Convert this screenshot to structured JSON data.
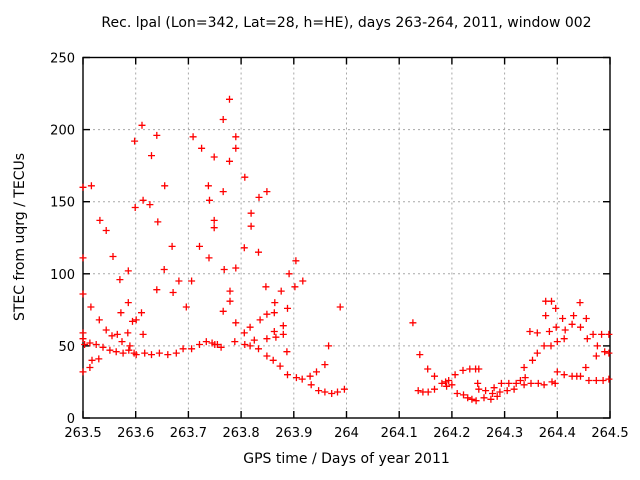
{
  "chart_data": {
    "type": "scatter",
    "title": "Rec. lpal (Lon=342, Lat=28, h=HE), days 263-264, 2011, window 002",
    "xlabel": "GPS time / Days of year 2011",
    "ylabel": "STEC from uqrg / TECUs",
    "xlim": [
      263.5,
      264.5
    ],
    "ylim": [
      0,
      250
    ],
    "x_ticks": [
      263.5,
      263.6,
      263.7,
      263.8,
      263.9,
      264.0,
      264.1,
      264.2,
      264.3,
      264.4,
      264.5
    ],
    "x_tick_labels": [
      "263.5",
      "263.6",
      "263.7",
      "263.8",
      "263.9",
      "264",
      "264.1",
      "264.2",
      "264.3",
      "264.4",
      "264.5"
    ],
    "y_ticks": [
      0,
      50,
      100,
      150,
      200,
      250
    ],
    "y_tick_labels": [
      "0",
      "50",
      "100",
      "150",
      "200",
      "250"
    ],
    "grid": true,
    "legend": "none",
    "marker": "plus",
    "marker_color": "#ff0000",
    "series": [
      {
        "name": "STEC uqrg",
        "points": [
          [
            263.5,
            160
          ],
          [
            263.516,
            161
          ],
          [
            263.532,
            137
          ],
          [
            263.544,
            130
          ],
          [
            263.5,
            111
          ],
          [
            263.557,
            112
          ],
          [
            263.57,
            96
          ],
          [
            263.586,
            102
          ],
          [
            263.598,
            192
          ],
          [
            263.612,
            203
          ],
          [
            263.64,
            196
          ],
          [
            263.63,
            182
          ],
          [
            263.599,
            146
          ],
          [
            263.614,
            151
          ],
          [
            263.627,
            148
          ],
          [
            263.642,
            136
          ],
          [
            263.655,
            161
          ],
          [
            263.5,
            86
          ],
          [
            263.515,
            77
          ],
          [
            263.586,
            80
          ],
          [
            263.572,
            73
          ],
          [
            263.531,
            68
          ],
          [
            263.544,
            61
          ],
          [
            263.5,
            59
          ],
          [
            263.5,
            55
          ],
          [
            263.513,
            52
          ],
          [
            263.503,
            51
          ],
          [
            263.525,
            51
          ],
          [
            263.538,
            49
          ],
          [
            263.551,
            47
          ],
          [
            263.563,
            46
          ],
          [
            263.576,
            45
          ],
          [
            263.587,
            47
          ],
          [
            263.597,
            45
          ],
          [
            263.517,
            40
          ],
          [
            263.53,
            41
          ],
          [
            263.513,
            35
          ],
          [
            263.5,
            32
          ],
          [
            263.555,
            57
          ],
          [
            263.565,
            58
          ],
          [
            263.574,
            53
          ],
          [
            263.585,
            59
          ],
          [
            263.594,
            67
          ],
          [
            263.601,
            68
          ],
          [
            263.611,
            73
          ],
          [
            263.614,
            58
          ],
          [
            263.589,
            50
          ],
          [
            263.654,
            103
          ],
          [
            263.669,
            119
          ],
          [
            263.64,
            89
          ],
          [
            263.671,
            87
          ],
          [
            263.682,
            95
          ],
          [
            263.696,
            77
          ],
          [
            263.706,
            95
          ],
          [
            263.721,
            119
          ],
          [
            263.739,
            111
          ],
          [
            263.709,
            195
          ],
          [
            263.725,
            187
          ],
          [
            263.738,
            161
          ],
          [
            263.74,
            151
          ],
          [
            263.749,
            181
          ],
          [
            263.749,
            137
          ],
          [
            263.749,
            132
          ],
          [
            263.601,
            44
          ],
          [
            263.617,
            45
          ],
          [
            263.63,
            44
          ],
          [
            263.645,
            45
          ],
          [
            263.661,
            44
          ],
          [
            263.677,
            45
          ],
          [
            263.69,
            48
          ],
          [
            263.706,
            48
          ],
          [
            263.721,
            51
          ],
          [
            263.734,
            53
          ],
          [
            263.745,
            52
          ],
          [
            263.766,
            207
          ],
          [
            263.778,
            221
          ],
          [
            263.79,
            195
          ],
          [
            263.79,
            187
          ],
          [
            263.778,
            178
          ],
          [
            263.807,
            167
          ],
          [
            263.766,
            157
          ],
          [
            263.806,
            118
          ],
          [
            263.833,
            115
          ],
          [
            263.819,
            142
          ],
          [
            263.819,
            133
          ],
          [
            263.834,
            153
          ],
          [
            263.849,
            157
          ],
          [
            263.768,
            103
          ],
          [
            263.79,
            104
          ],
          [
            263.779,
            88
          ],
          [
            263.779,
            81
          ],
          [
            263.766,
            74
          ],
          [
            263.79,
            66
          ],
          [
            263.836,
            68
          ],
          [
            263.817,
            63
          ],
          [
            263.806,
            59
          ],
          [
            263.825,
            54
          ],
          [
            263.849,
            55
          ],
          [
            263.75,
            51
          ],
          [
            263.755,
            51
          ],
          [
            263.762,
            49
          ],
          [
            263.788,
            53
          ],
          [
            263.807,
            51
          ],
          [
            263.817,
            50
          ],
          [
            263.833,
            48
          ],
          [
            263.847,
            91
          ],
          [
            263.876,
            88
          ],
          [
            263.891,
            100
          ],
          [
            263.902,
            91
          ],
          [
            263.904,
            109
          ],
          [
            263.917,
            95
          ],
          [
            263.849,
            72
          ],
          [
            263.863,
            73
          ],
          [
            263.864,
            80
          ],
          [
            263.888,
            76
          ],
          [
            263.863,
            60
          ],
          [
            263.866,
            56
          ],
          [
            263.88,
            64
          ],
          [
            263.88,
            58
          ],
          [
            263.849,
            43
          ],
          [
            263.861,
            40
          ],
          [
            263.874,
            36
          ],
          [
            263.887,
            46
          ],
          [
            263.888,
            30
          ],
          [
            263.905,
            28
          ],
          [
            263.916,
            27
          ],
          [
            263.931,
            29
          ],
          [
            263.943,
            32
          ],
          [
            263.959,
            37
          ],
          [
            263.966,
            50
          ],
          [
            263.988,
            77
          ],
          [
            263.933,
            23
          ],
          [
            263.947,
            19
          ],
          [
            263.959,
            18
          ],
          [
            263.972,
            17
          ],
          [
            263.983,
            18
          ],
          [
            263.996,
            20
          ],
          [
            264.126,
            66
          ],
          [
            264.139,
            44
          ],
          [
            264.154,
            34
          ],
          [
            264.167,
            29
          ],
          [
            264.136,
            19
          ],
          [
            264.145,
            18
          ],
          [
            264.155,
            18
          ],
          [
            264.167,
            20
          ],
          [
            264.181,
            24
          ],
          [
            264.188,
            25
          ],
          [
            264.19,
            22
          ],
          [
            264.194,
            26
          ],
          [
            264.2,
            23
          ],
          [
            264.206,
            30
          ],
          [
            264.21,
            17
          ],
          [
            264.221,
            33
          ],
          [
            264.222,
            16
          ],
          [
            264.23,
            14
          ],
          [
            264.234,
            34
          ],
          [
            264.238,
            13
          ],
          [
            264.245,
            34
          ],
          [
            264.246,
            12
          ],
          [
            264.249,
            24
          ],
          [
            264.251,
            34
          ],
          [
            264.251,
            20
          ],
          [
            264.261,
            14
          ],
          [
            264.264,
            19
          ],
          [
            264.274,
            13
          ],
          [
            264.277,
            17
          ],
          [
            264.28,
            21
          ],
          [
            264.286,
            15
          ],
          [
            264.291,
            18
          ],
          [
            264.294,
            24
          ],
          [
            264.305,
            19
          ],
          [
            264.308,
            24
          ],
          [
            264.318,
            20
          ],
          [
            264.322,
            24
          ],
          [
            264.33,
            26
          ],
          [
            264.337,
            23
          ],
          [
            264.339,
            28
          ],
          [
            264.337,
            35
          ],
          [
            264.35,
            24
          ],
          [
            264.353,
            40
          ],
          [
            264.364,
            24
          ],
          [
            264.348,
            60
          ],
          [
            264.362,
            59
          ],
          [
            264.362,
            45
          ],
          [
            264.375,
            50
          ],
          [
            264.375,
            23
          ],
          [
            264.378,
            71
          ],
          [
            264.378,
            81
          ],
          [
            264.385,
            60
          ],
          [
            264.388,
            50
          ],
          [
            264.389,
            81
          ],
          [
            264.39,
            25
          ],
          [
            264.396,
            24
          ],
          [
            264.397,
            76
          ],
          [
            264.398,
            63
          ],
          [
            264.4,
            53
          ],
          [
            264.4,
            32
          ],
          [
            264.41,
            69
          ],
          [
            264.413,
            55
          ],
          [
            264.413,
            30
          ],
          [
            264.415,
            61
          ],
          [
            264.428,
            65
          ],
          [
            264.428,
            29
          ],
          [
            264.431,
            71
          ],
          [
            264.437,
            29
          ],
          [
            264.443,
            80
          ],
          [
            264.444,
            63
          ],
          [
            264.444,
            29
          ],
          [
            264.454,
            35
          ],
          [
            264.455,
            69
          ],
          [
            264.457,
            55
          ],
          [
            264.46,
            26
          ],
          [
            264.468,
            58
          ],
          [
            264.474,
            43
          ],
          [
            264.474,
            26
          ],
          [
            264.476,
            50
          ],
          [
            264.484,
            58
          ],
          [
            264.487,
            26
          ],
          [
            264.49,
            46
          ],
          [
            264.498,
            58
          ],
          [
            264.498,
            45
          ],
          [
            264.498,
            27
          ]
        ]
      }
    ]
  }
}
